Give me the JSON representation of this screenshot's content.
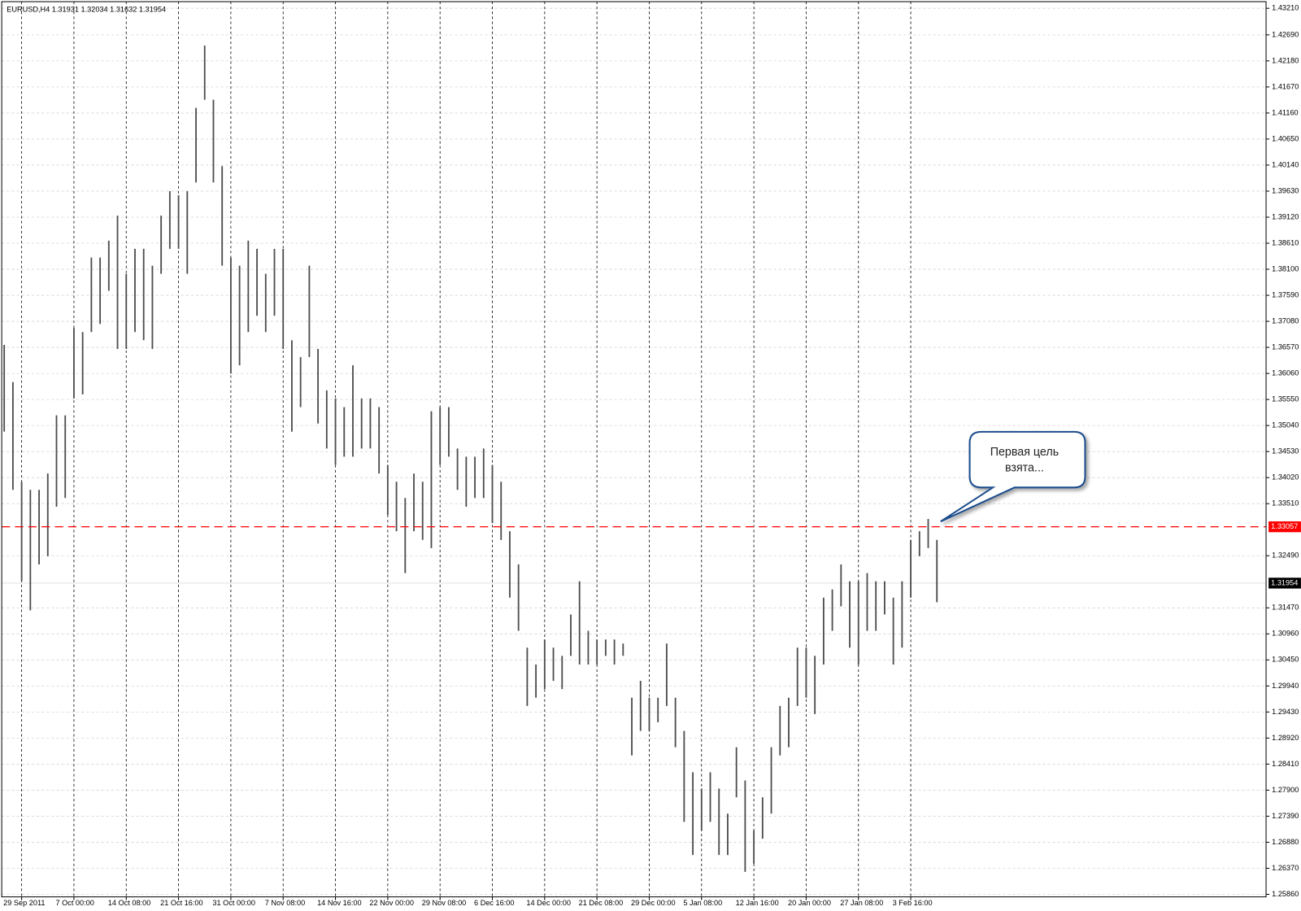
{
  "chart_data": {
    "type": "range",
    "title": "EURUSD,H4  1.31931 1.32034 1.31632 1.31954",
    "color": "#4d4d4d",
    "grid": true,
    "ylim": [
      1.2581,
      1.4334
    ],
    "yticks": [
      {
        "value": 1.2586,
        "label": "1.25860"
      },
      {
        "value": 1.2637,
        "label": "1.26370"
      },
      {
        "value": 1.2688,
        "label": "1.26880"
      },
      {
        "value": 1.2739,
        "label": "1.27390"
      },
      {
        "value": 1.279,
        "label": "1.27900"
      },
      {
        "value": 1.2841,
        "label": "1.28410"
      },
      {
        "value": 1.2892,
        "label": "1.28920"
      },
      {
        "value": 1.2943,
        "label": "1.29430"
      },
      {
        "value": 1.2994,
        "label": "1.29940"
      },
      {
        "value": 1.3045,
        "label": "1.30450"
      },
      {
        "value": 1.3096,
        "label": "1.30960"
      },
      {
        "value": 1.3147,
        "label": "1.31470"
      },
      {
        "value": 1.3249,
        "label": "1.32490"
      },
      {
        "value": 1.3351,
        "label": "1.33510"
      },
      {
        "value": 1.3402,
        "label": "1.34020"
      },
      {
        "value": 1.3453,
        "label": "1.34530"
      },
      {
        "value": 1.3504,
        "label": "1.35040"
      },
      {
        "value": 1.3555,
        "label": "1.35550"
      },
      {
        "value": 1.3606,
        "label": "1.36060"
      },
      {
        "value": 1.3657,
        "label": "1.36570"
      },
      {
        "value": 1.3708,
        "label": "1.37080"
      },
      {
        "value": 1.3759,
        "label": "1.37590"
      },
      {
        "value": 1.381,
        "label": "1.38100"
      },
      {
        "value": 1.3861,
        "label": "1.38610"
      },
      {
        "value": 1.3912,
        "label": "1.39120"
      },
      {
        "value": 1.3963,
        "label": "1.39630"
      },
      {
        "value": 1.4014,
        "label": "1.40140"
      },
      {
        "value": 1.4065,
        "label": "1.40650"
      },
      {
        "value": 1.4116,
        "label": "1.41160"
      },
      {
        "value": 1.4167,
        "label": "1.41670"
      },
      {
        "value": 1.4218,
        "label": "1.42180"
      },
      {
        "value": 1.4269,
        "label": "1.42690"
      },
      {
        "value": 1.4321,
        "label": "1.43210"
      }
    ],
    "categories": [
      null,
      null,
      "29 Sep 2011",
      null,
      null,
      null,
      null,
      null,
      "7 Oct 00:00",
      null,
      null,
      null,
      null,
      null,
      "14 Oct 08:00",
      null,
      null,
      null,
      null,
      null,
      "21 Oct 16:00",
      null,
      null,
      null,
      null,
      null,
      "31 Oct 00:00",
      null,
      null,
      null,
      null,
      null,
      "7 Nov 08:00",
      null,
      null,
      null,
      null,
      null,
      "14 Nov 16:00",
      null,
      null,
      null,
      null,
      null,
      "22 Nov 00:00",
      null,
      null,
      null,
      null,
      null,
      "29 Nov 08:00",
      null,
      null,
      null,
      null,
      null,
      "6 Dec 16:00",
      null,
      null,
      null,
      null,
      null,
      "14 Dec 00:00",
      null,
      null,
      null,
      null,
      null,
      "21 Dec 08:00",
      null,
      null,
      null,
      null,
      null,
      "29 Dec 00:00",
      null,
      null,
      null,
      null,
      null,
      "5 Jan 08:00",
      null,
      null,
      null,
      null,
      null,
      "12 Jan 16:00",
      null,
      null,
      null,
      null,
      null,
      "20 Jan 00:00",
      null,
      null,
      null,
      null,
      null,
      "27 Jan 08:00",
      null,
      null,
      null,
      null,
      null,
      "3 Feb 16:00",
      null,
      null,
      null
    ],
    "high": [
      1.3662,
      1.3589,
      1.3394,
      1.3378,
      1.3378,
      1.341,
      1.3524,
      1.3524,
      1.3695,
      1.3687,
      1.3833,
      1.3833,
      1.3866,
      1.3915,
      1.3801,
      1.385,
      1.385,
      1.3817,
      1.3915,
      1.3963,
      1.3955,
      1.3963,
      1.4126,
      1.4248,
      1.4142,
      1.4012,
      1.3833,
      1.3817,
      1.3866,
      1.385,
      1.3801,
      1.385,
      1.385,
      1.3671,
      1.3638,
      1.3817,
      1.3654,
      1.3573,
      1.3557,
      1.354,
      1.3622,
      1.3557,
      1.3557,
      1.354,
      1.3427,
      1.3394,
      1.3362,
      1.341,
      1.3394,
      1.3532,
      1.354,
      1.354,
      1.3459,
      1.3443,
      1.3443,
      1.3459,
      1.3427,
      1.3394,
      1.3297,
      1.3232,
      1.3069,
      1.3036,
      1.3085,
      1.3069,
      1.3053,
      1.3134,
      1.3199,
      1.3102,
      1.3085,
      1.3085,
      1.3085,
      1.3077,
      1.2971,
      1.3004,
      1.2971,
      1.2971,
      1.3077,
      1.2971,
      1.2906,
      1.2825,
      1.2793,
      1.2825,
      1.2793,
      1.2744,
      1.2874,
      1.2809,
      1.2711,
      1.2776,
      1.2874,
      1.2955,
      1.2971,
      1.3069,
      1.3069,
      1.3053,
      1.3167,
      1.3183,
      1.3232,
      1.3199,
      1.3199,
      1.3215,
      1.3199,
      1.3199,
      1.3167,
      1.3199,
      1.328,
      1.3297,
      1.3321,
      1.328
    ],
    "low": [
      1.3492,
      1.3378,
      1.3199,
      1.3142,
      1.3232,
      1.3248,
      1.3345,
      1.3362,
      1.3557,
      1.3565,
      1.3687,
      1.3703,
      1.3768,
      1.3654,
      1.3654,
      1.3687,
      1.3671,
      1.3654,
      1.3801,
      1.385,
      1.385,
      1.3801,
      1.398,
      1.4142,
      1.398,
      1.3817,
      1.3606,
      1.3622,
      1.3687,
      1.3719,
      1.3687,
      1.3719,
      1.3654,
      1.3492,
      1.354,
      1.3638,
      1.3508,
      1.3459,
      1.3427,
      1.3443,
      1.3443,
      1.3459,
      1.3459,
      1.341,
      1.3329,
      1.3297,
      1.3215,
      1.3297,
      1.328,
      1.3264,
      1.3427,
      1.3443,
      1.3378,
      1.3345,
      1.3362,
      1.3362,
      1.3313,
      1.328,
      1.3167,
      1.3102,
      1.2955,
      1.2971,
      1.2988,
      1.3004,
      1.2988,
      1.3053,
      1.3036,
      1.3036,
      1.3036,
      1.3053,
      1.3036,
      1.3053,
      1.2858,
      1.2906,
      1.2906,
      1.2923,
      1.2955,
      1.2874,
      1.2728,
      1.2663,
      1.2711,
      1.2728,
      1.2663,
      1.2663,
      1.2776,
      1.263,
      1.2646,
      1.2695,
      1.2744,
      1.2858,
      1.2874,
      1.2955,
      1.2971,
      1.2939,
      1.3036,
      1.3102,
      1.315,
      1.3069,
      1.3036,
      1.3102,
      1.3102,
      1.3134,
      1.3036,
      1.3069,
      1.3167,
      1.3248,
      1.3264,
      1.3158
    ],
    "price_lines": [
      {
        "value": 1.33057,
        "color": "#ff0000",
        "style": "dashed"
      },
      {
        "value": 1.31954,
        "color": "#000000",
        "style": "solid"
      }
    ],
    "annotation": [
      "Первая цель",
      "взята..."
    ]
  }
}
